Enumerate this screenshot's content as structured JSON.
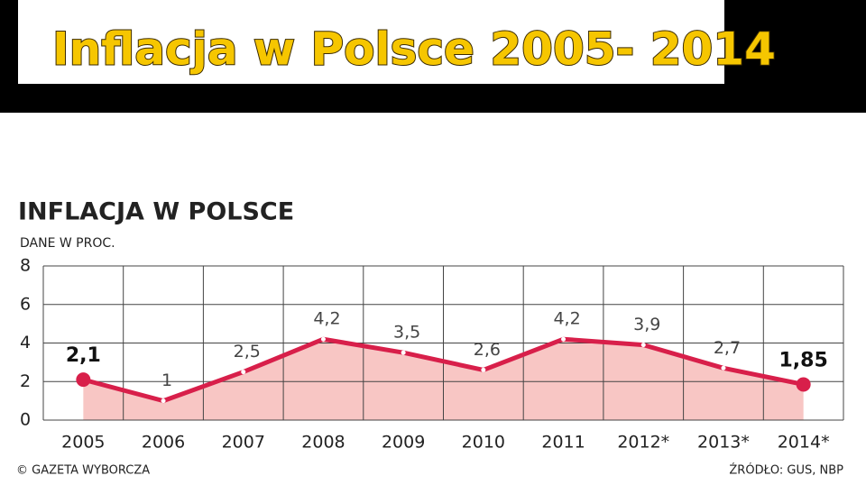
{
  "slide_title": "Inflacja w Polsce 2005- 2014",
  "chart_data": {
    "type": "line",
    "title": "INFLACJA W POLSCE",
    "subtitle": "DANE W PROC.",
    "categories": [
      "2005",
      "2006",
      "2007",
      "2008",
      "2009",
      "2010",
      "2011",
      "2012*",
      "2013*",
      "2014*"
    ],
    "values": [
      2.1,
      1,
      2.5,
      4.2,
      3.5,
      2.6,
      4.2,
      3.9,
      2.7,
      1.85
    ],
    "value_labels": [
      "2,1",
      "1",
      "2,5",
      "4,2",
      "3,5",
      "2,6",
      "4,2",
      "3,9",
      "2,7",
      "1,85"
    ],
    "color": "#d81f4a",
    "area_color": "#f8c6c4",
    "ylim": [
      0,
      8
    ],
    "yticks": [
      0,
      2,
      4,
      6,
      8
    ],
    "grid": true,
    "credit": "© GAZETA WYBORCZA",
    "source": "ŹRÓDŁO: GUS, NBP"
  }
}
